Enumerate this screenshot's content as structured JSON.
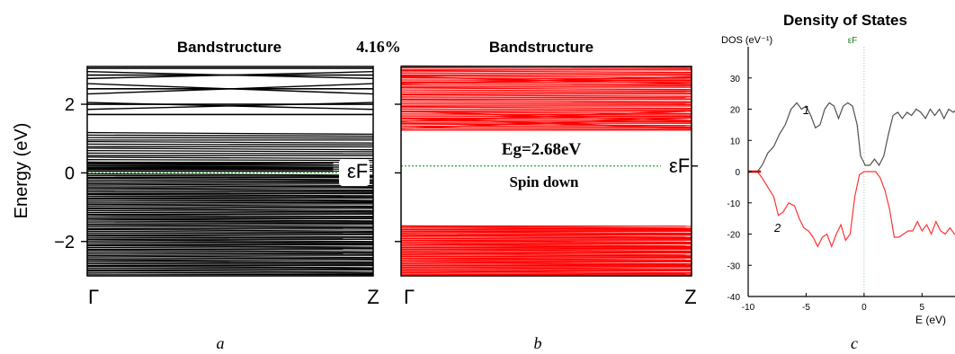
{
  "panel_labels": {
    "a": "a",
    "b": "b",
    "c": "c"
  },
  "strain_label": "4.16%",
  "chart_data": [
    {
      "type": "line",
      "panel": "a",
      "title": "Bandstructure",
      "xlabel": "",
      "ylabel": "Energy (eV)",
      "x_ticks": [
        "Γ",
        "Z"
      ],
      "y_ticks": [
        -2,
        0,
        2
      ],
      "ylim": [
        -3.0,
        3.1
      ],
      "fermi_level": 0,
      "fermi_label": "εF",
      "series_color": "#000000",
      "band_groups": [
        {
          "from": -3.0,
          "to": -0.05,
          "count": 70,
          "flat": true
        },
        {
          "from": 0.05,
          "to": 1.15,
          "count": 18,
          "flat": true
        }
      ],
      "bands": [
        1.7,
        2.0,
        2.45,
        2.85,
        3.05
      ],
      "crossing_bands": [
        [
          2.3,
          2.6
        ],
        [
          2.6,
          2.3
        ],
        [
          2.75,
          2.95
        ],
        [
          2.95,
          2.75
        ],
        [
          1.85,
          2.05
        ],
        [
          2.05,
          1.85
        ]
      ],
      "short_bands": [
        0.05,
        0.1,
        0.15,
        0.22,
        0.28
      ]
    },
    {
      "type": "line",
      "panel": "b",
      "title": "Bandstructure",
      "xlabel": "",
      "ylabel": "",
      "x_ticks": [
        "Γ",
        "Z"
      ],
      "ylim": [
        -3.0,
        3.1
      ],
      "fermi_level": 0.2,
      "fermi_label": "εF",
      "gap_label": "Eg=2.68eV",
      "spin_label": "Spin down",
      "series_color": "#ff0000",
      "band_groups": [
        {
          "from": -3.0,
          "to": -1.55,
          "count": 40,
          "flat": true
        },
        {
          "from": 1.25,
          "to": 3.1,
          "count": 38,
          "flat": true
        }
      ],
      "crossing_bands": [
        [
          1.3,
          1.6
        ],
        [
          1.6,
          1.3
        ],
        [
          1.5,
          1.8
        ],
        [
          1.8,
          1.5
        ],
        [
          2.6,
          2.8
        ],
        [
          2.8,
          2.6
        ]
      ]
    },
    {
      "type": "line",
      "panel": "c",
      "title": "Density of States",
      "xlabel": "E (eV)",
      "ylabel": "DOS (eV⁻¹)",
      "xlim": [
        -10,
        8
      ],
      "ylim": [
        -40,
        40
      ],
      "x_ticks": [
        -10,
        -5,
        0,
        5
      ],
      "y_ticks": [
        -40,
        -30,
        -20,
        -10,
        0,
        10,
        20,
        30
      ],
      "fermi_label": "εF",
      "series": [
        {
          "name": "1",
          "color": "#505050",
          "x": [
            -10,
            -9.2,
            -8.8,
            -8.3,
            -7.8,
            -7.3,
            -6.8,
            -6.3,
            -5.8,
            -5.4,
            -5.0,
            -4.6,
            -4.2,
            -3.8,
            -3.4,
            -3.0,
            -2.6,
            -2.2,
            -1.8,
            -1.4,
            -1.0,
            -0.6,
            -0.3,
            0.1,
            0.5,
            0.9,
            1.3,
            1.7,
            2.1,
            2.5,
            2.9,
            3.3,
            3.7,
            4.1,
            4.5,
            4.9,
            5.3,
            5.7,
            6.1,
            6.5,
            6.9,
            7.3,
            7.7,
            8.0
          ],
          "y": [
            0,
            0,
            2,
            6,
            8,
            12,
            15,
            20,
            22,
            20,
            21,
            18,
            14,
            15,
            20,
            22,
            21,
            17,
            21,
            22,
            21,
            15,
            5,
            2,
            2,
            4,
            2,
            5,
            12,
            18,
            19,
            17,
            19,
            18,
            20,
            19,
            17,
            20,
            18,
            20,
            17,
            20,
            19,
            20
          ]
        },
        {
          "name": "2",
          "color": "#ff3333",
          "x": [
            -10,
            -9.2,
            -8.8,
            -8.3,
            -7.8,
            -7.4,
            -7.0,
            -6.5,
            -6.0,
            -5.6,
            -5.2,
            -4.8,
            -4.4,
            -4.0,
            -3.6,
            -3.2,
            -2.8,
            -2.4,
            -2.0,
            -1.6,
            -1.2,
            -0.8,
            -0.4,
            0,
            0.5,
            1.0,
            1.4,
            1.8,
            2.2,
            2.6,
            3.0,
            3.4,
            3.8,
            4.2,
            4.6,
            5.0,
            5.4,
            5.8,
            6.2,
            6.6,
            7.0,
            7.4,
            7.8,
            8.0
          ],
          "y": [
            0,
            0,
            -2,
            -5,
            -8,
            -14,
            -13,
            -10,
            -11,
            -15,
            -18,
            -19,
            -21,
            -24,
            -21,
            -20,
            -24,
            -20,
            -17,
            -22,
            -20,
            -8,
            -1,
            0,
            0,
            0,
            -2,
            -6,
            -12,
            -21,
            -21,
            -20,
            -19,
            -19,
            -16,
            -19,
            -17,
            -20,
            -16,
            -19,
            -20,
            -18,
            -20,
            -20
          ]
        }
      ]
    }
  ]
}
